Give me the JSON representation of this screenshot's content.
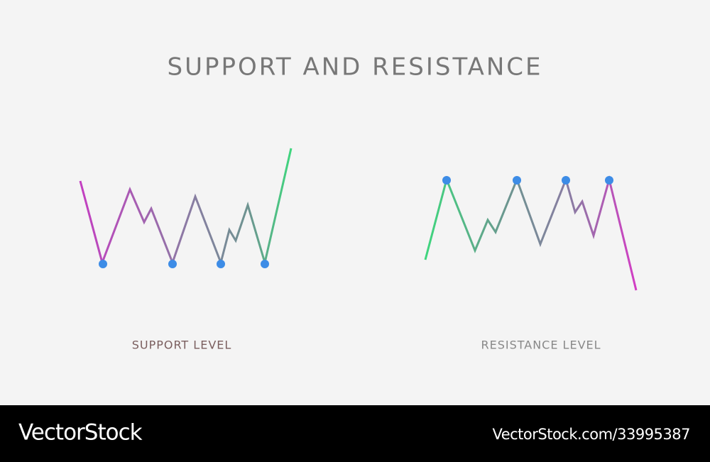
{
  "title": "SUPPORT AND RESISTANCE",
  "panels": [
    {
      "label": "SUPPORT LEVEL"
    },
    {
      "label": "RESISTANCE LEVEL"
    }
  ],
  "footer": {
    "brand": "VectorStock",
    "id": "VectorStock.com/33995387"
  }
}
